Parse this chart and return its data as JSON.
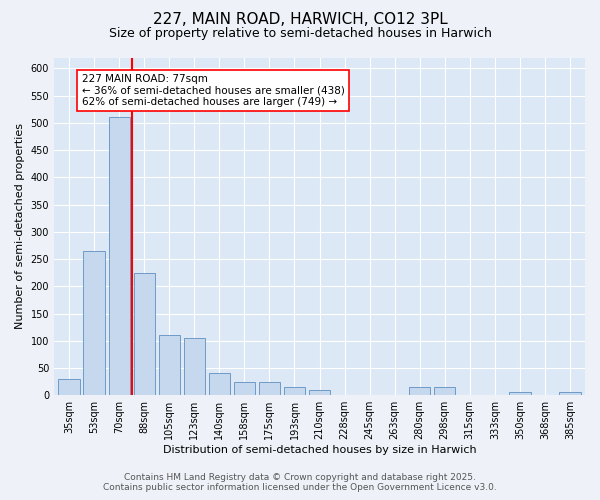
{
  "title": "227, MAIN ROAD, HARWICH, CO12 3PL",
  "subtitle": "Size of property relative to semi-detached houses in Harwich",
  "xlabel": "Distribution of semi-detached houses by size in Harwich",
  "ylabel": "Number of semi-detached properties",
  "categories": [
    "35sqm",
    "53sqm",
    "70sqm",
    "88sqm",
    "105sqm",
    "123sqm",
    "140sqm",
    "158sqm",
    "175sqm",
    "193sqm",
    "210sqm",
    "228sqm",
    "245sqm",
    "263sqm",
    "280sqm",
    "298sqm",
    "315sqm",
    "333sqm",
    "350sqm",
    "368sqm",
    "385sqm"
  ],
  "values": [
    30,
    265,
    510,
    225,
    110,
    105,
    40,
    25,
    25,
    15,
    10,
    0,
    0,
    0,
    15,
    15,
    0,
    0,
    5,
    0,
    5
  ],
  "bar_color": "#c5d8ee",
  "bar_edge_color": "#6090c0",
  "red_line_x": 2.5,
  "annotation_text_line1": "227 MAIN ROAD: 77sqm",
  "annotation_text_line2": "← 36% of semi-detached houses are smaller (438)",
  "annotation_text_line3": "62% of semi-detached houses are larger (749) →",
  "background_color": "#eef2f8",
  "plot_bg_color": "#dce8f5",
  "grid_color": "#ffffff",
  "ylim": [
    0,
    620
  ],
  "yticks": [
    0,
    50,
    100,
    150,
    200,
    250,
    300,
    350,
    400,
    450,
    500,
    550,
    600
  ],
  "footer_line1": "Contains HM Land Registry data © Crown copyright and database right 2025.",
  "footer_line2": "Contains public sector information licensed under the Open Government Licence v3.0.",
  "title_fontsize": 11,
  "subtitle_fontsize": 9,
  "axis_label_fontsize": 8,
  "tick_fontsize": 7,
  "annotation_fontsize": 7.5,
  "footer_fontsize": 6.5
}
